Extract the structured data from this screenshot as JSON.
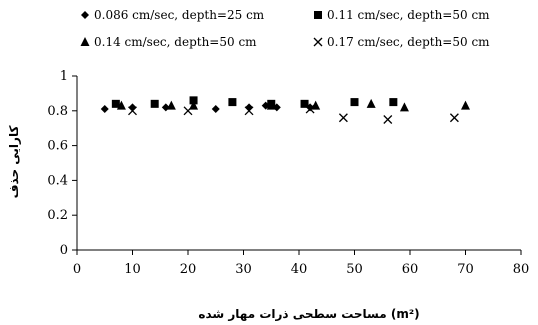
{
  "chart_data": {
    "type": "scatter",
    "title": "",
    "xlabel": "مساحت سطحی ذرات مهار شده (m²)",
    "ylabel": "کارایی حذف",
    "xlim": [
      0,
      80
    ],
    "ylim": [
      0,
      1
    ],
    "x_ticks": [
      "0",
      "10",
      "20",
      "30",
      "40",
      "50",
      "60",
      "70",
      "80"
    ],
    "y_ticks": [
      "0",
      "0.2",
      "0.4",
      "0.6",
      "0.8",
      "1"
    ],
    "grid": false,
    "legend_position": "top",
    "series": [
      {
        "name": "0.086 cm/sec, depth=25 cm",
        "marker": "diamond",
        "points": [
          [
            5,
            0.81
          ],
          [
            10,
            0.82
          ],
          [
            16,
            0.82
          ],
          [
            25,
            0.81
          ],
          [
            31,
            0.82
          ],
          [
            34,
            0.83
          ],
          [
            36,
            0.82
          ],
          [
            42,
            0.82
          ]
        ]
      },
      {
        "name": "0.11 cm/sec, depth=50 cm",
        "marker": "square",
        "points": [
          [
            7,
            0.84
          ],
          [
            14,
            0.84
          ],
          [
            21,
            0.86
          ],
          [
            28,
            0.85
          ],
          [
            35,
            0.84
          ],
          [
            41,
            0.84
          ],
          [
            50,
            0.85
          ],
          [
            57,
            0.85
          ]
        ]
      },
      {
        "name": "0.14 cm/sec, depth=50 cm",
        "marker": "triangle",
        "points": [
          [
            8,
            0.83
          ],
          [
            17,
            0.83
          ],
          [
            21,
            0.83
          ],
          [
            35,
            0.83
          ],
          [
            43,
            0.83
          ],
          [
            53,
            0.84
          ],
          [
            59,
            0.82
          ],
          [
            70,
            0.83
          ]
        ]
      },
      {
        "name": "0.17 cm/sec, depth=50 cm",
        "marker": "x",
        "points": [
          [
            10,
            0.8
          ],
          [
            20,
            0.8
          ],
          [
            31,
            0.8
          ],
          [
            42,
            0.81
          ],
          [
            48,
            0.76
          ],
          [
            56,
            0.75
          ],
          [
            68,
            0.76
          ]
        ]
      }
    ]
  }
}
